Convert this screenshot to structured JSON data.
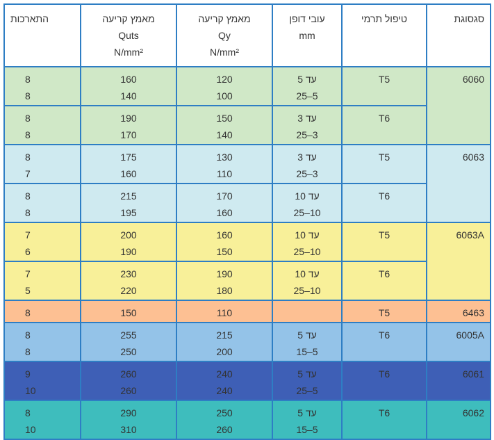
{
  "header": {
    "alloy": "סגסוגת",
    "temper": "טיפול תרמי",
    "thickness": [
      "עובי דופן",
      "mm"
    ],
    "yield": [
      "מאמץ קריעה",
      "Qy",
      "N/mm²"
    ],
    "tensile": [
      "מאמץ קריעה",
      "Quts",
      "N/mm²"
    ],
    "elongation": "התארכות"
  },
  "colors": {
    "border": "#2e7ec4",
    "green": "#d0e8c7",
    "light_blue": "#cfeaf0",
    "yellow": "#f8f099",
    "orange": "#fdc093",
    "mid_blue": "#94c3e8",
    "dark_blue": "#3e5fb6",
    "teal": "#3ebdbd"
  },
  "groups": [
    {
      "alloy": "6060",
      "color": "green",
      "rows": [
        {
          "temper": "T5",
          "thickness": [
            "עד 5",
            "5–25"
          ],
          "yield": [
            "120",
            "100"
          ],
          "tensile": [
            "160",
            "140"
          ],
          "elongation": [
            "8",
            "8"
          ]
        },
        {
          "temper": "T6",
          "thickness": [
            "עד 3",
            "3–25"
          ],
          "yield": [
            "150",
            "140"
          ],
          "tensile": [
            "190",
            "170"
          ],
          "elongation": [
            "8",
            "8"
          ]
        }
      ]
    },
    {
      "alloy": "6063",
      "color": "light_blue",
      "rows": [
        {
          "temper": "T5",
          "thickness": [
            "עד 3",
            "3–25"
          ],
          "yield": [
            "130",
            "110"
          ],
          "tensile": [
            "175",
            "160"
          ],
          "elongation": [
            "8",
            "7"
          ]
        },
        {
          "temper": "T6",
          "thickness": [
            "עד 10",
            "10–25"
          ],
          "yield": [
            "170",
            "160"
          ],
          "tensile": [
            "215",
            "195"
          ],
          "elongation": [
            "8",
            "8"
          ]
        }
      ]
    },
    {
      "alloy": "6063A",
      "color": "yellow",
      "rows": [
        {
          "temper": "T5",
          "thickness": [
            "עד 10",
            "10–25"
          ],
          "yield": [
            "160",
            "150"
          ],
          "tensile": [
            "200",
            "190"
          ],
          "elongation": [
            "7",
            "6"
          ]
        },
        {
          "temper": "T6",
          "thickness": [
            "עד 10",
            "10–25"
          ],
          "yield": [
            "190",
            "180"
          ],
          "tensile": [
            "230",
            "220"
          ],
          "elongation": [
            "7",
            "5"
          ]
        }
      ]
    },
    {
      "alloy": "6463",
      "color": "orange",
      "rows": [
        {
          "temper": "T5",
          "thickness": [
            ""
          ],
          "yield": [
            "110"
          ],
          "tensile": [
            "150"
          ],
          "elongation": [
            "8"
          ]
        }
      ]
    },
    {
      "alloy": "6005A",
      "color": "mid_blue",
      "rows": [
        {
          "temper": "T6",
          "thickness": [
            "עד 5",
            "5–15"
          ],
          "yield": [
            "215",
            "200"
          ],
          "tensile": [
            "255",
            "250"
          ],
          "elongation": [
            "8",
            "8"
          ]
        }
      ]
    },
    {
      "alloy": "6061",
      "color": "dark_blue",
      "rows": [
        {
          "temper": "T6",
          "thickness": [
            "עד 5",
            "5–25"
          ],
          "yield": [
            "240",
            "240"
          ],
          "tensile": [
            "260",
            "260"
          ],
          "elongation": [
            "9",
            "10"
          ]
        }
      ]
    },
    {
      "alloy": "6062",
      "color": "teal",
      "rows": [
        {
          "temper": "T6",
          "thickness": [
            "עד 5",
            "5–15"
          ],
          "yield": [
            "250",
            "260"
          ],
          "tensile": [
            "290",
            "310"
          ],
          "elongation": [
            "8",
            "10"
          ]
        }
      ]
    }
  ]
}
